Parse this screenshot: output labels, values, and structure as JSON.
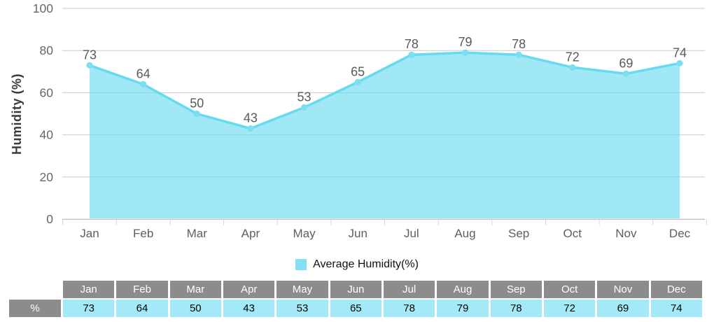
{
  "chart_data": {
    "type": "area",
    "categories": [
      "Jan",
      "Feb",
      "Mar",
      "Apr",
      "May",
      "Jun",
      "Jul",
      "Aug",
      "Sep",
      "Oct",
      "Nov",
      "Dec"
    ],
    "values": [
      73,
      64,
      50,
      43,
      53,
      65,
      78,
      79,
      78,
      72,
      69,
      74
    ],
    "title": "",
    "xlabel": "",
    "ylabel": "Humidity (%)",
    "ylim": [
      0,
      100
    ],
    "yticks": [
      0,
      20,
      40,
      60,
      80,
      100
    ],
    "grid": true,
    "legend_position": "bottom",
    "series": [
      {
        "name": "Average Humidity(%)",
        "values": [
          73,
          64,
          50,
          43,
          53,
          65,
          78,
          79,
          78,
          72,
          69,
          74
        ]
      }
    ]
  },
  "legend": {
    "label": "Average Humidity(%)"
  },
  "table": {
    "corner_label": "",
    "row_label": "%"
  },
  "colors": {
    "line": "#67DAF0",
    "area_fill": "#67DAF0",
    "area_fill_opacity": "0.62",
    "marker": "#7CDEEF",
    "legend_swatch": "#82E0F3",
    "grid": "#CBCBCB",
    "axis": "#C2C2C2",
    "axis_tick": "#D5D5D5",
    "y_tick_label": "#666666",
    "x_tick_label": "#5E5E5E",
    "data_label": "#595959",
    "table_header_bg": "#8C8C8C",
    "table_header_text": "#FFFFFF",
    "table_value_bg": "#A4E9F7",
    "table_value_text": "#000000"
  }
}
